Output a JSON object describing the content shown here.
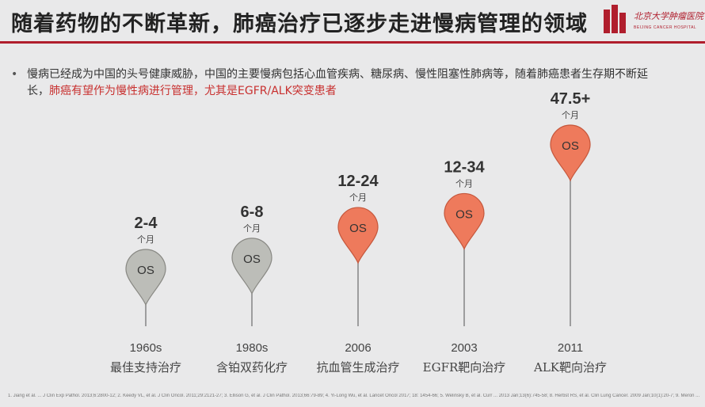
{
  "slide": {
    "title": "随着药物的不断革新，肺癌治疗已逐步走进慢病管理的领域",
    "logo_name": "北京大学肿瘤医院",
    "logo_sub": "BEIJING CANCER HOSPITAL",
    "bullet_plain": "慢病已经成为中国的头号健康威胁，中国的主要慢病包括心血管疾病、糖尿病、慢性阻塞性肺病等，随着肺癌患者生存期不断延长，",
    "bullet_highlight": "肺癌有望作为慢性病进行管理，尤其是EGFR/ALK突变患者",
    "references": "1. Jiang et al. ... J Clin Exp Pathol. 2013;6:2800-12; 2. Keedy VL, et al. J Clin Oncol. 2011;29:2121-27; 3. Ellison G, et al. J Clin Pathol. 2013;66:79-89; 4. Yi-Long Wu, et al. Lancet Oncol 2017; 18: 1454-66; 5. Welinsky B, et al. Curr ... 2013 Jan;13(6):745-58; 8. Herbst RS, et al. Clin Lung Cancer. 2009 Jan;10(1):20-7; 9. Meron ..."
  },
  "chart_data": {
    "type": "timeline",
    "pin_label": "OS",
    "unit": "个月",
    "milestones": [
      {
        "year": "1960s",
        "therapy": "最佳支持治疗",
        "os": "2-4",
        "os_mid": 3,
        "color": "#bcbdb8",
        "stroke": "#888883"
      },
      {
        "year": "1980s",
        "therapy": "含铂双药化疗",
        "os": "6-8",
        "os_mid": 7,
        "color": "#bcbdb8",
        "stroke": "#888883"
      },
      {
        "year": "2006",
        "therapy": "抗血管生成治疗",
        "os": "12-24",
        "os_mid": 18,
        "color": "#ee7a5c",
        "stroke": "#c5573c"
      },
      {
        "year": "2003",
        "therapy": "EGFR靶向治疗",
        "os": "12-34",
        "os_mid": 23,
        "color": "#ee7a5c",
        "stroke": "#c5573c"
      },
      {
        "year": "2011",
        "therapy": "ALK靶向治疗",
        "os": "47.5+",
        "os_mid": 47.5,
        "color": "#ee7a5c",
        "stroke": "#c5573c"
      }
    ]
  }
}
